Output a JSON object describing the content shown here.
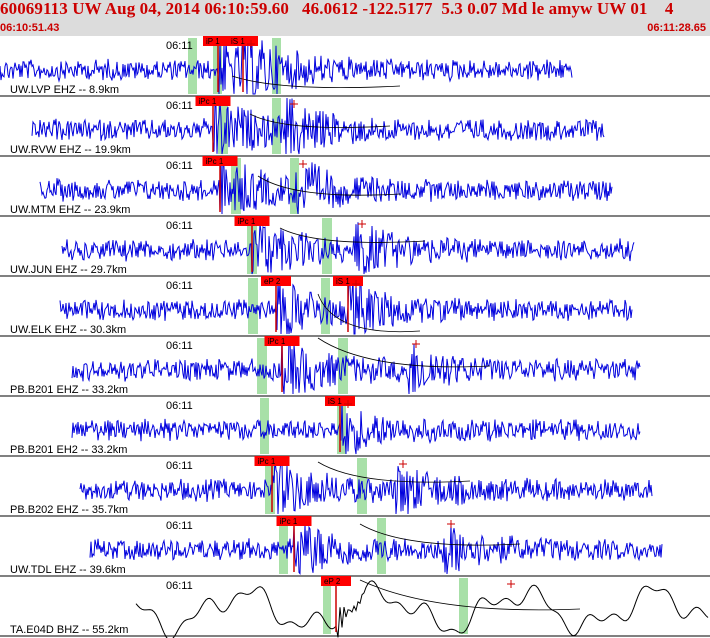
{
  "header": {
    "title": "60069113 UW Aug 04, 2014 06:10:59.60   46.0612 -122.5177  5.3 0.07 Md le amyw UW 01    4",
    "start_time": "06:10:51.43",
    "end_time": "06:11:28.65"
  },
  "colors": {
    "header_bg": "#dcdcdc",
    "header_text": "#cc0000",
    "trace": "#0000dd",
    "trace_lp": "#000000",
    "pick_box": "#ff0000",
    "pick_line": "#cc0000",
    "window": "#a8e0a8",
    "moveout": "#000000"
  },
  "traces": [
    {
      "station": "UW.LVP EHZ -- 8.9km",
      "time_label": "06:11",
      "picks": [
        {
          "label": "iP 1"
        },
        {
          "label": "iS 1"
        }
      ],
      "style": "hf",
      "amp": 1
    },
    {
      "station": "UW.RVW EHZ -- 19.9km",
      "time_label": "06:11",
      "picks": [
        {
          "label": "iPc 1"
        }
      ],
      "style": "hf",
      "amp": 1
    },
    {
      "station": "UW.MTM EHZ -- 23.9km",
      "time_label": "06:11",
      "picks": [
        {
          "label": "iPc 1"
        }
      ],
      "style": "hf",
      "amp": 1
    },
    {
      "station": "UW.JUN EHZ -- 29.7km",
      "time_label": "06:11",
      "picks": [
        {
          "label": "iPc 1"
        }
      ],
      "style": "hf",
      "amp": 1
    },
    {
      "station": "UW.ELK EHZ -- 30.3km",
      "time_label": "06:11",
      "picks": [
        {
          "label": "eP 2"
        },
        {
          "label": "iS 1"
        }
      ],
      "style": "hf",
      "amp": 1
    },
    {
      "station": "PB.B201 EHZ -- 33.2km",
      "time_label": "06:11",
      "picks": [
        {
          "label": "iPc 1"
        }
      ],
      "style": "hf",
      "amp": 1
    },
    {
      "station": "PB.B201 EH2 -- 33.2km",
      "time_label": "06:11",
      "picks": [
        {
          "label": "iS 1"
        }
      ],
      "style": "hf",
      "amp": 1
    },
    {
      "station": "PB.B202 EHZ -- 35.7km",
      "time_label": "06:11",
      "picks": [
        {
          "label": "iPc 1"
        }
      ],
      "style": "hf",
      "amp": 1
    },
    {
      "station": "UW.TDL EHZ -- 39.6km",
      "time_label": "06:11",
      "picks": [
        {
          "label": "iPc 1"
        }
      ],
      "style": "hf",
      "amp": 1
    },
    {
      "station": "TA.E04D BHZ -- 55.2km",
      "time_label": "06:11",
      "picks": [
        {
          "label": "eP 2"
        }
      ],
      "style": "lp",
      "amp": 1
    }
  ]
}
